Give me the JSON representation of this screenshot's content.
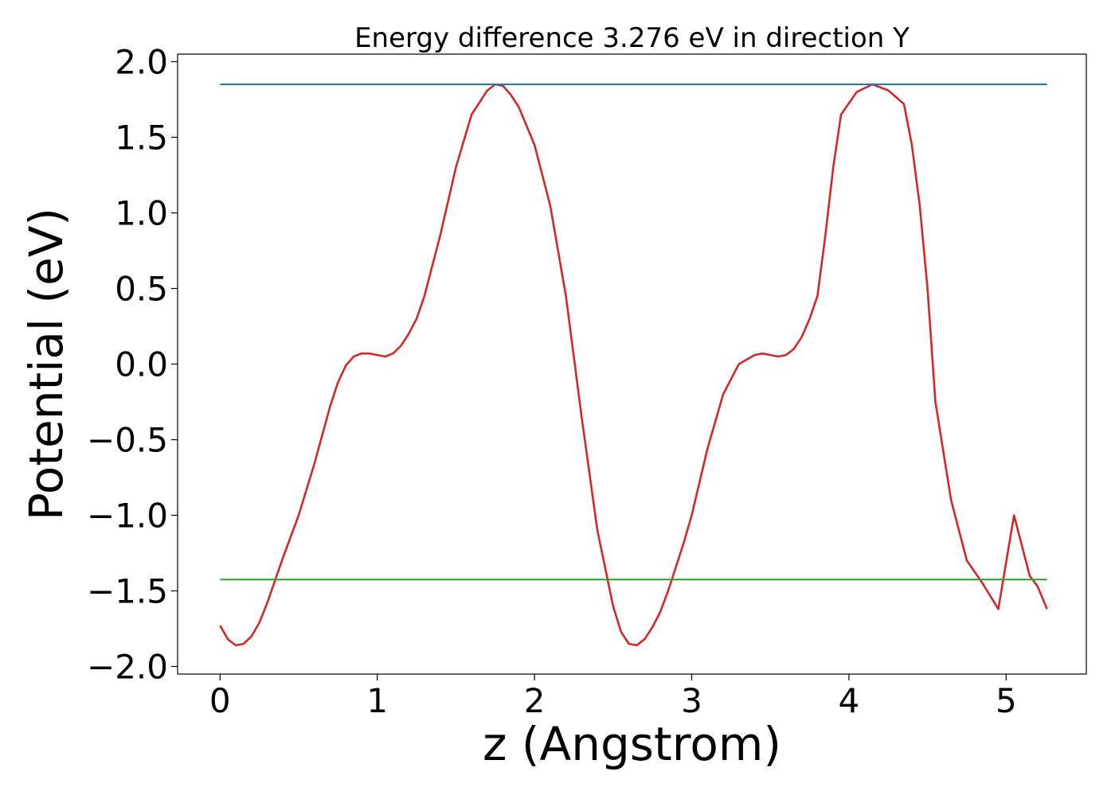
{
  "chart_data": {
    "type": "line",
    "title": "Energy difference 3.276 eV in direction Y",
    "xlabel": "z (Angstrom)",
    "ylabel": "Potential (eV)",
    "xlim": [
      -0.27,
      5.51
    ],
    "ylim": [
      -2.05,
      2.05
    ],
    "xticks": [
      0,
      1,
      2,
      3,
      4,
      5
    ],
    "xtick_labels": [
      "0",
      "1",
      "2",
      "3",
      "4",
      "5"
    ],
    "yticks": [
      -2.0,
      -1.5,
      -1.0,
      -0.5,
      0.0,
      0.5,
      1.0,
      1.5,
      2.0
    ],
    "ytick_labels": [
      "−2.0",
      "−1.5",
      "−1.0",
      "−0.5",
      "0.0",
      "0.5",
      "1.0",
      "1.5",
      "2.0"
    ],
    "grid": false,
    "series": [
      {
        "color": "#d62728",
        "x": [
          0.0,
          0.05,
          0.1,
          0.15,
          0.2,
          0.25,
          0.3,
          0.35,
          0.4,
          0.5,
          0.6,
          0.7,
          0.75,
          0.8,
          0.85,
          0.9,
          0.95,
          1.0,
          1.05,
          1.1,
          1.15,
          1.2,
          1.25,
          1.3,
          1.4,
          1.5,
          1.6,
          1.7,
          1.75,
          1.8,
          1.85,
          1.9,
          2.0,
          2.1,
          2.2,
          2.3,
          2.4,
          2.5,
          2.55,
          2.6,
          2.65,
          2.7,
          2.75,
          2.8,
          2.85,
          2.9,
          2.95,
          3.0,
          3.05,
          3.1,
          3.2,
          3.3,
          3.4,
          3.45,
          3.5,
          3.55,
          3.6,
          3.65,
          3.7,
          3.75,
          3.8,
          3.85,
          3.9,
          3.95,
          4.05,
          4.15,
          4.25,
          4.35,
          4.4,
          4.45,
          4.5,
          4.55,
          4.65,
          4.75,
          4.85,
          4.95,
          5.05,
          5.15,
          5.2,
          5.26
        ],
        "y": [
          -1.73,
          -1.82,
          -1.86,
          -1.85,
          -1.8,
          -1.71,
          -1.58,
          -1.43,
          -1.28,
          -1.0,
          -0.66,
          -0.28,
          -0.12,
          -0.01,
          0.05,
          0.07,
          0.07,
          0.06,
          0.05,
          0.07,
          0.12,
          0.2,
          0.3,
          0.45,
          0.85,
          1.3,
          1.65,
          1.81,
          1.85,
          1.84,
          1.78,
          1.7,
          1.45,
          1.05,
          0.45,
          -0.35,
          -1.1,
          -1.6,
          -1.77,
          -1.85,
          -1.86,
          -1.82,
          -1.74,
          -1.64,
          -1.5,
          -1.34,
          -1.18,
          -1.0,
          -0.78,
          -0.56,
          -0.2,
          0.0,
          0.06,
          0.07,
          0.06,
          0.05,
          0.06,
          0.1,
          0.18,
          0.3,
          0.45,
          0.85,
          1.3,
          1.65,
          1.8,
          1.85,
          1.81,
          1.72,
          1.45,
          1.05,
          0.5,
          -0.25,
          -0.9,
          -1.3,
          -1.45,
          -1.62,
          -1.0,
          -1.4,
          -1.47,
          -1.62
        ]
      },
      {
        "color": "#1f77b4",
        "x": [
          0.0,
          5.26
        ],
        "y": [
          1.85,
          1.85
        ]
      },
      {
        "color": "#2ca02c",
        "x": [
          0.0,
          5.26
        ],
        "y": [
          -1.425,
          -1.425
        ]
      }
    ]
  }
}
